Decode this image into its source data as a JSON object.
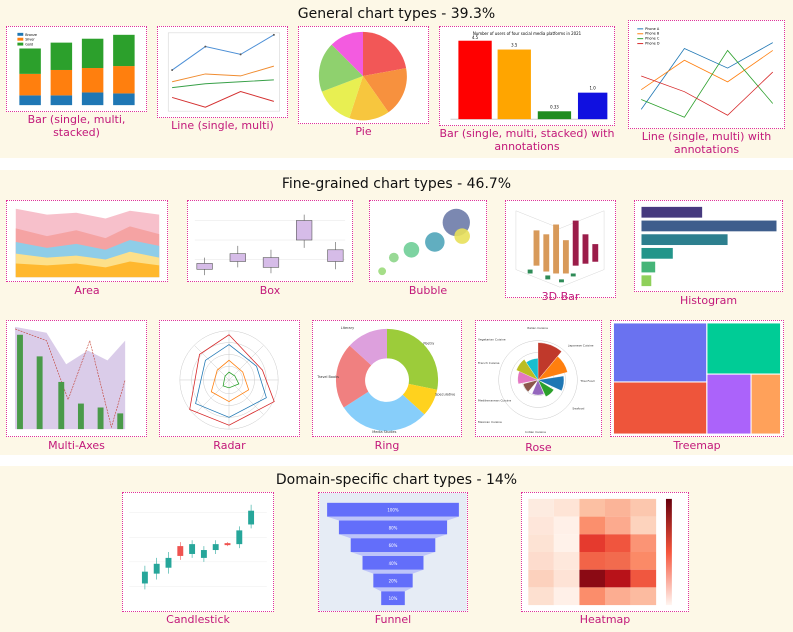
{
  "sections": [
    {
      "title": "General chart types - 39.3%"
    },
    {
      "title": "Fine-grained chart types - 46.7%"
    },
    {
      "title": "Domain-specific chart types - 14%"
    }
  ],
  "charts": {
    "bar": {
      "caption": "Bar (single, multi, stacked)",
      "legend": [
        "Bronze",
        "Silver",
        "Gold"
      ]
    },
    "line": {
      "caption": "Line (single, multi)"
    },
    "pie": {
      "caption": "Pie"
    },
    "bar_annot": {
      "caption": "Bar (single, multi, stacked) with annotations",
      "title": "Number of users of four social media platforms in 2021",
      "labels": [
        "4.5",
        "3.5",
        "0.33",
        "1.0"
      ]
    },
    "line_annot": {
      "caption": "Line (single, multi) with annotations",
      "legend": [
        "Phone A",
        "Phone B",
        "Phone C",
        "Phone D"
      ]
    },
    "area": {
      "caption": "Area"
    },
    "box": {
      "caption": "Box"
    },
    "bubble": {
      "caption": "Bubble"
    },
    "bar3d": {
      "caption": "3D Bar"
    },
    "histogram": {
      "caption": "Histogram"
    },
    "multi_axes": {
      "caption": "Multi-Axes"
    },
    "radar": {
      "caption": "Radar"
    },
    "ring": {
      "caption": "Ring",
      "labels": [
        "Literary",
        "Poetry",
        "Speculative",
        "Media Studies",
        "Travel Books"
      ]
    },
    "rose": {
      "caption": "Rose",
      "labels": [
        "Italian Cuisine",
        "Japanese Cuisine",
        "Thai Food",
        "Seafood",
        "Indian Cuisine",
        "Mexican Cuisine",
        "Mediterranean Cuisine",
        "French Cuisine",
        "Vegetarian Cuisine"
      ]
    },
    "treemap": {
      "caption": "Treemap"
    },
    "candlestick": {
      "caption": "Candlestick"
    },
    "funnel": {
      "caption": "Funnel",
      "labels": [
        "100%",
        "80%",
        "60%",
        "40%",
        "20%",
        "10%"
      ]
    },
    "heatmap": {
      "caption": "Heatmap"
    }
  },
  "colors": {
    "border": "#e0339b",
    "caption": "#c2187a",
    "band": "#fdf8e7"
  }
}
